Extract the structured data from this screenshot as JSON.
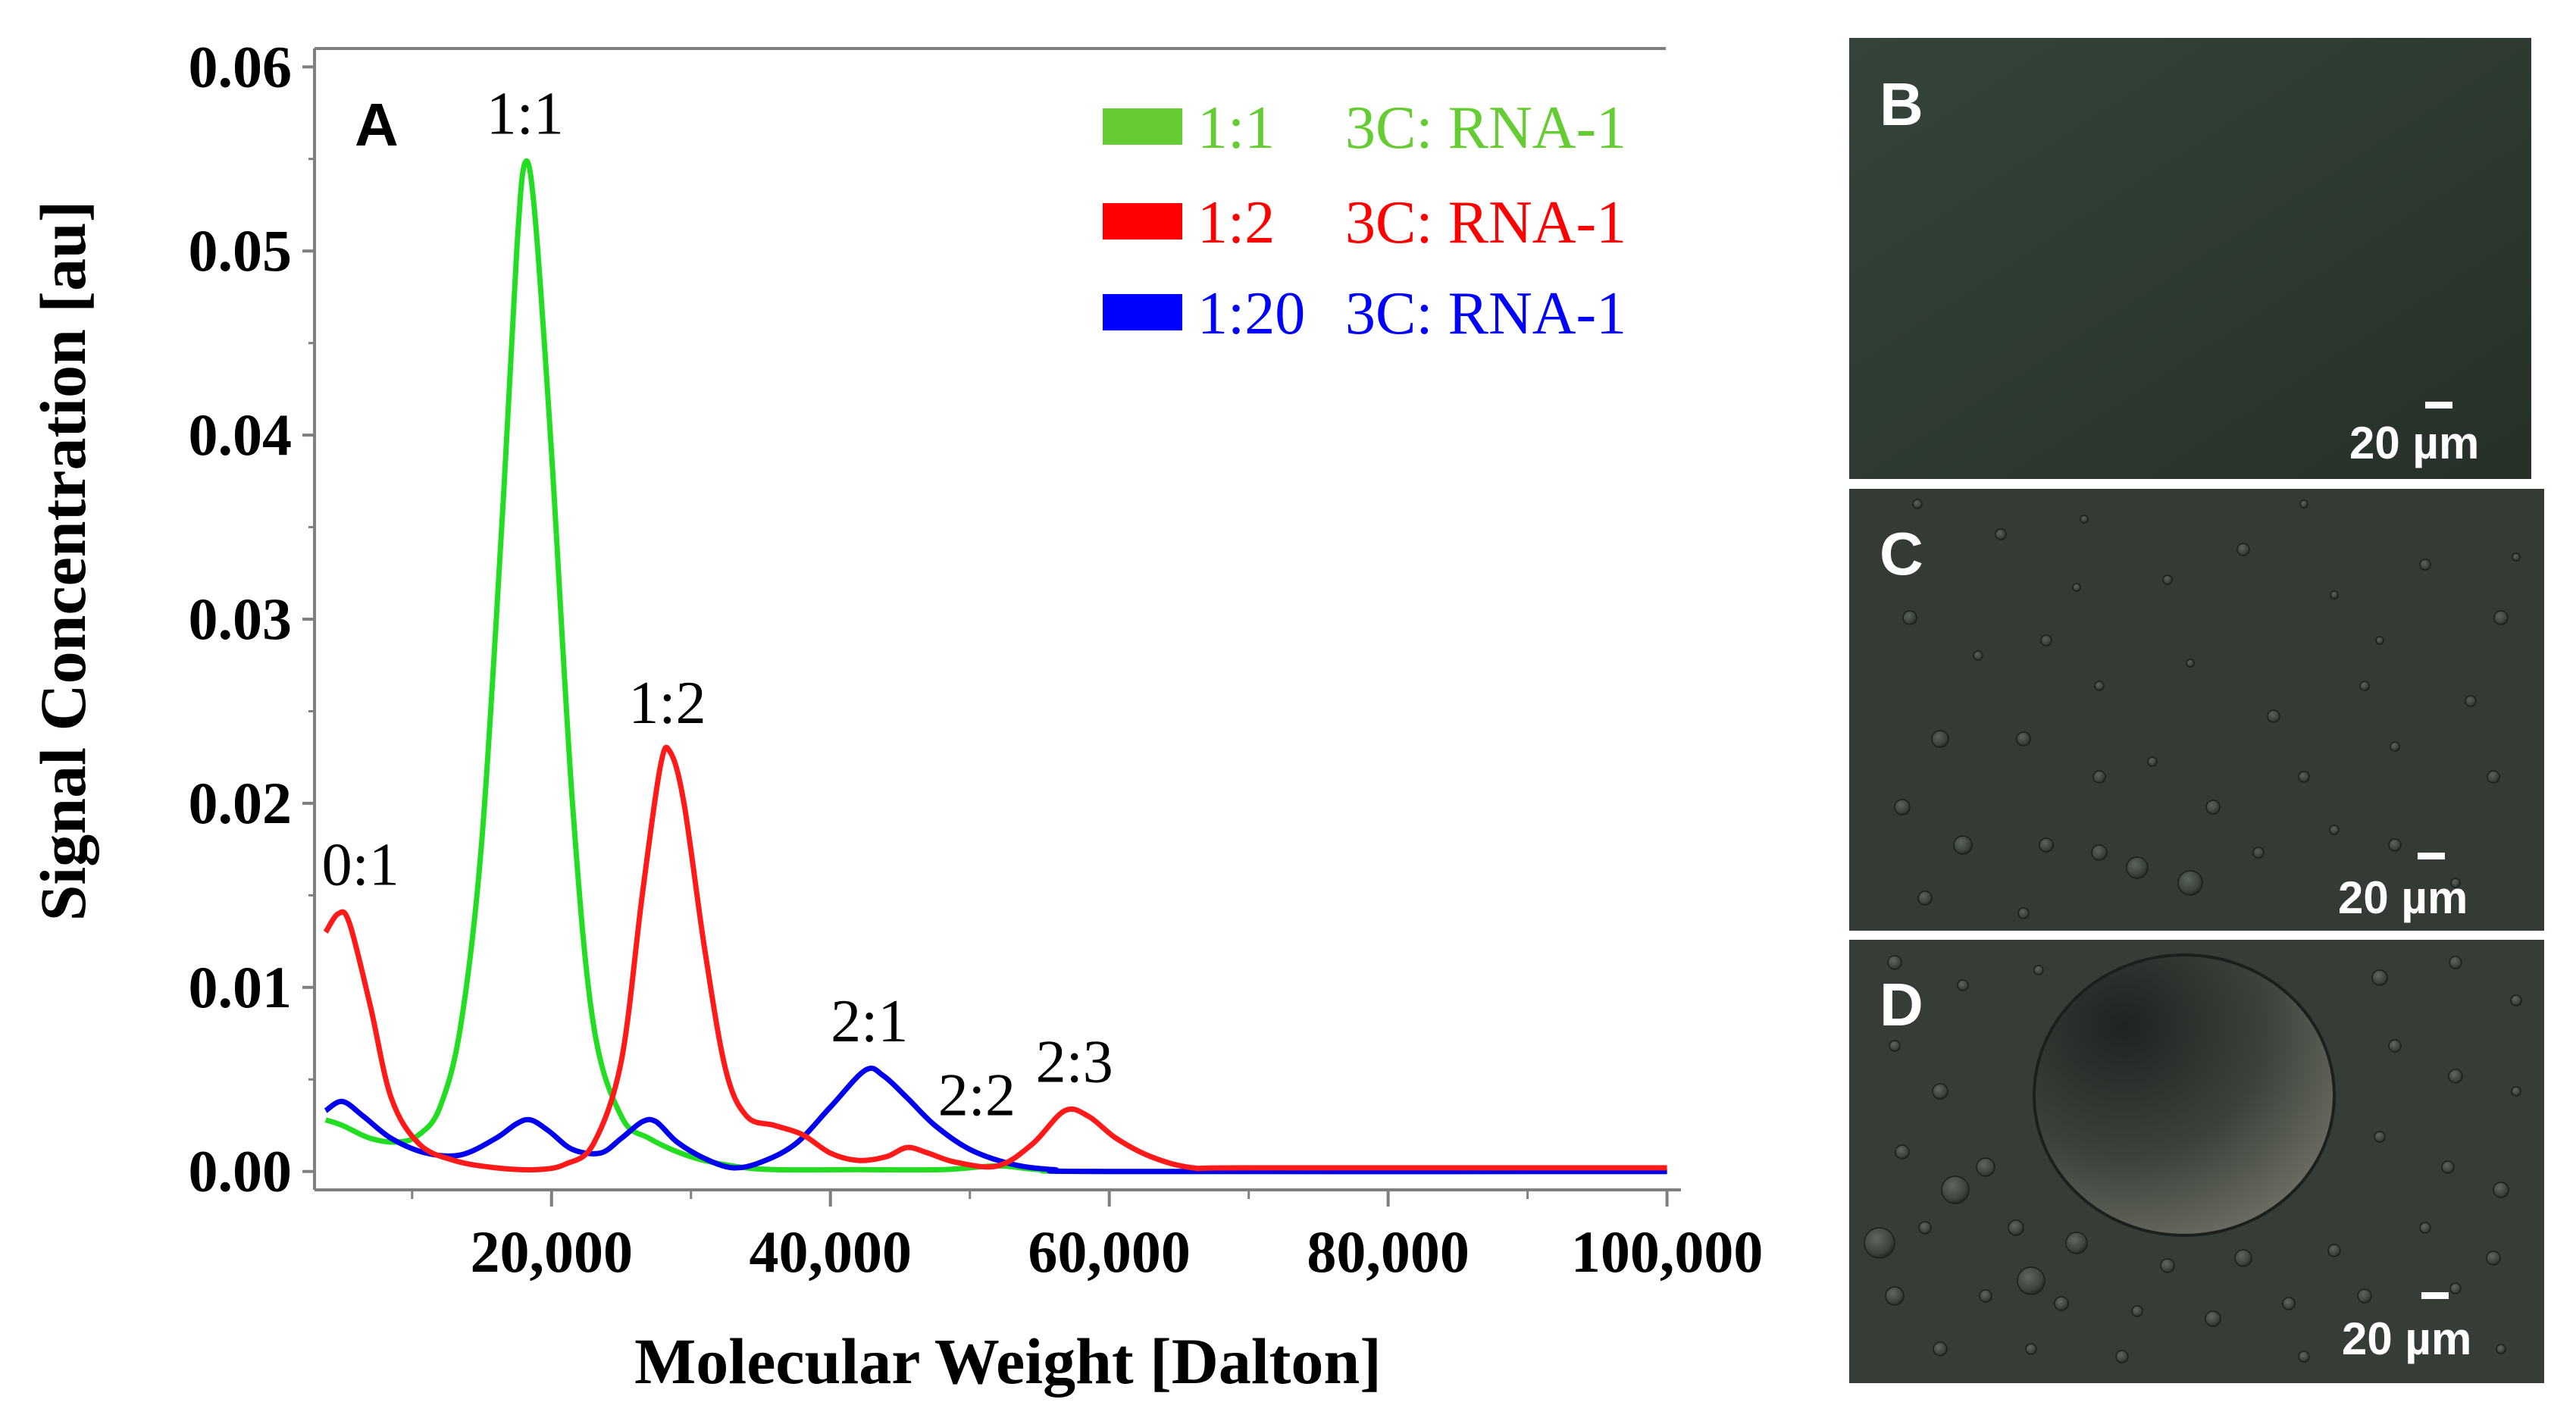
{
  "chart_data": {
    "type": "line",
    "panel_label": "A",
    "xlabel": "Molecular Weight [Dalton]",
    "ylabel": "Signal Concentration [au]",
    "xlim": [
      3000,
      101000
    ],
    "ylim": [
      -0.001,
      0.061
    ],
    "x_ticks": [
      20000,
      40000,
      60000,
      80000,
      100000
    ],
    "x_tick_labels": [
      "20,000",
      "40,000",
      "60,000",
      "80,000",
      "100,000"
    ],
    "y_ticks": [
      0.0,
      0.01,
      0.02,
      0.03,
      0.04,
      0.05,
      0.06
    ],
    "y_tick_labels": [
      "0.00",
      "0.01",
      "0.02",
      "0.03",
      "0.04",
      "0.05",
      "0.06"
    ],
    "legend_position": "top-right",
    "series": [
      {
        "name": "1:1   3C: RNA-1",
        "ratio": "1:1",
        "desc": "3C: RNA-1",
        "color": "#22dd22",
        "legend_color": "#66cc33",
        "points": [
          [
            3800,
            0.0028
          ],
          [
            5000,
            0.0025
          ],
          [
            7000,
            0.0018
          ],
          [
            9000,
            0.0016
          ],
          [
            10500,
            0.002
          ],
          [
            12000,
            0.0035
          ],
          [
            13500,
            0.008
          ],
          [
            15000,
            0.018
          ],
          [
            16500,
            0.036
          ],
          [
            17500,
            0.05
          ],
          [
            18100,
            0.0548
          ],
          [
            18800,
            0.052
          ],
          [
            20000,
            0.039
          ],
          [
            21500,
            0.02
          ],
          [
            23000,
            0.008
          ],
          [
            25000,
            0.003
          ],
          [
            27000,
            0.0018
          ],
          [
            30000,
            0.0008
          ],
          [
            33000,
            0.0003
          ],
          [
            36000,
            0.0001
          ],
          [
            42000,
            0.0001
          ],
          [
            48000,
            0.0001
          ],
          [
            52000,
            0.0003
          ],
          [
            55000,
            0.0001
          ],
          [
            60000,
            0.0
          ],
          [
            100000,
            0.0
          ]
        ]
      },
      {
        "name": "1:2   3C: RNA-1",
        "ratio": "1:2",
        "desc": "3C: RNA-1",
        "color": "#ff1a1a",
        "legend_color": "#ff0000",
        "points": [
          [
            3800,
            0.013
          ],
          [
            4700,
            0.014
          ],
          [
            5500,
            0.0135
          ],
          [
            7000,
            0.009
          ],
          [
            8500,
            0.004
          ],
          [
            10500,
            0.0015
          ],
          [
            13000,
            0.0006
          ],
          [
            16000,
            0.0002
          ],
          [
            19000,
            0.0001
          ],
          [
            21000,
            0.0004
          ],
          [
            23000,
            0.0015
          ],
          [
            25000,
            0.006
          ],
          [
            26500,
            0.015
          ],
          [
            27800,
            0.022
          ],
          [
            28500,
            0.0228
          ],
          [
            29500,
            0.02
          ],
          [
            31000,
            0.012
          ],
          [
            32500,
            0.0055
          ],
          [
            34000,
            0.003
          ],
          [
            36000,
            0.0025
          ],
          [
            38000,
            0.002
          ],
          [
            40000,
            0.001
          ],
          [
            42000,
            0.0006
          ],
          [
            44000,
            0.0008
          ],
          [
            45500,
            0.0013
          ],
          [
            47000,
            0.001
          ],
          [
            49000,
            0.0005
          ],
          [
            52000,
            0.0003
          ],
          [
            54500,
            0.0015
          ],
          [
            56800,
            0.0033
          ],
          [
            58500,
            0.003
          ],
          [
            60500,
            0.0018
          ],
          [
            63000,
            0.0008
          ],
          [
            66000,
            0.0002
          ],
          [
            70000,
            0.0002
          ],
          [
            100000,
            0.0002
          ]
        ]
      },
      {
        "name": "1:20 3C: RNA-1",
        "ratio": "1:20",
        "desc": "3C: RNA-1",
        "color": "#0000ee",
        "legend_color": "#0000ff",
        "points": [
          [
            3800,
            0.0033
          ],
          [
            5000,
            0.0038
          ],
          [
            6500,
            0.003
          ],
          [
            8500,
            0.0018
          ],
          [
            11000,
            0.001
          ],
          [
            13500,
            0.0009
          ],
          [
            16000,
            0.0018
          ],
          [
            17500,
            0.0026
          ],
          [
            18500,
            0.0028
          ],
          [
            19800,
            0.0022
          ],
          [
            21500,
            0.0012
          ],
          [
            23500,
            0.001
          ],
          [
            25000,
            0.0018
          ],
          [
            26500,
            0.0027
          ],
          [
            27500,
            0.0027
          ],
          [
            29000,
            0.0016
          ],
          [
            31000,
            0.0007
          ],
          [
            33000,
            0.0002
          ],
          [
            35000,
            0.0005
          ],
          [
            37500,
            0.0015
          ],
          [
            40000,
            0.0035
          ],
          [
            42500,
            0.0055
          ],
          [
            43800,
            0.0052
          ],
          [
            45500,
            0.004
          ],
          [
            47500,
            0.0025
          ],
          [
            50000,
            0.0012
          ],
          [
            53000,
            0.0004
          ],
          [
            56000,
            0.0001
          ],
          [
            60000,
            0.0
          ],
          [
            100000,
            0.0
          ]
        ]
      }
    ],
    "annotations": [
      {
        "text": "1:1",
        "x": 18100,
        "y": 0.0548
      },
      {
        "text": "1:2",
        "x": 28300,
        "y": 0.0228
      },
      {
        "text": "0:1",
        "x": 6300,
        "y": 0.014
      },
      {
        "text": "2:1",
        "x": 42800,
        "y": 0.0055
      },
      {
        "text": "2:2",
        "x": 50500,
        "y": 0.0015
      },
      {
        "text": "2:3",
        "x": 57500,
        "y": 0.0033
      }
    ]
  },
  "micrographs": [
    {
      "label": "B",
      "scale_label": "20 µm",
      "background": "#2e3b33"
    },
    {
      "label": "C",
      "scale_label": "20 µm",
      "background": "#323a33"
    },
    {
      "label": "D",
      "scale_label": "20 µm",
      "background": "#353c35"
    }
  ]
}
